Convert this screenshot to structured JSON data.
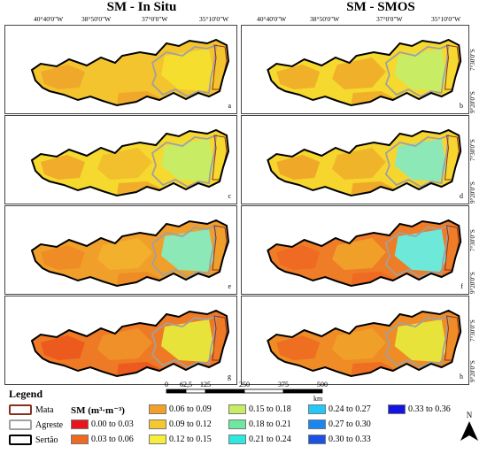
{
  "titles": {
    "left": "SM - In Situ",
    "right": "SM - SMOS"
  },
  "lon_labels": [
    "40°40'0\"W",
    "38°50'0\"W",
    "37°0'0\"W",
    "35°10'0\"W"
  ],
  "lat_labels": [
    "7°30'0\"S",
    "9°20'0\"S"
  ],
  "panels": [
    {
      "tag": "a",
      "palette": [
        "#f4c42e",
        "#f0a82a",
        "#f6de2e",
        "#f4c42e"
      ]
    },
    {
      "tag": "b",
      "palette": [
        "#f6d92e",
        "#f0b02a",
        "#c8ec63",
        "#f0b02a"
      ]
    },
    {
      "tag": "c",
      "palette": [
        "#f6d92e",
        "#f0ac2a",
        "#c8ec63",
        "#f2c02c"
      ]
    },
    {
      "tag": "d",
      "palette": [
        "#f6d62e",
        "#f0a828",
        "#8ce8b6",
        "#f0b42a"
      ]
    },
    {
      "tag": "e",
      "palette": [
        "#f0a02a",
        "#ef8c26",
        "#8ce8b6",
        "#f2b02c"
      ]
    },
    {
      "tag": "f",
      "palette": [
        "#ef7c26",
        "#ef6a22",
        "#6ee8d8",
        "#f0a028"
      ]
    },
    {
      "tag": "g",
      "palette": [
        "#ef7a26",
        "#ec5a1e",
        "#e8e33a",
        "#f09028"
      ]
    },
    {
      "tag": "h",
      "palette": [
        "#ef8c26",
        "#ee6e22",
        "#e8e33a",
        "#f0a028"
      ]
    }
  ],
  "legend": {
    "title": "Legend",
    "boundaries": [
      {
        "label": "Mata",
        "color": "#8b2e22"
      },
      {
        "label": "Agreste",
        "color": "#a0a0a0"
      },
      {
        "label": "Sertão",
        "color": "#000000"
      }
    ],
    "sm_label": "SM (m³·m⁻³)",
    "classes": [
      {
        "label": "0.00 to 0.03",
        "color": "#e8141c"
      },
      {
        "label": "0.03 to 0.06",
        "color": "#ee6a22"
      },
      {
        "label": "0.06 to 0.09",
        "color": "#f2a02a"
      },
      {
        "label": "0.09 to 0.12",
        "color": "#f6c830"
      },
      {
        "label": "0.12 to 0.15",
        "color": "#f6ee3a"
      },
      {
        "label": "0.15 to 0.18",
        "color": "#c8ec63"
      },
      {
        "label": "0.18 to 0.21",
        "color": "#6ee8a0"
      },
      {
        "label": "0.21 to 0.24",
        "color": "#2ee8e0"
      },
      {
        "label": "0.24 to 0.27",
        "color": "#22c8f6"
      },
      {
        "label": "0.27 to 0.30",
        "color": "#1a86f2"
      },
      {
        "label": "0.30 to 0.33",
        "color": "#1a52e6"
      },
      {
        "label": "0.33 to 0.36",
        "color": "#1414e0"
      }
    ]
  },
  "scale": {
    "ticks": [
      "0",
      "62,5",
      "125",
      "250",
      "375",
      "500"
    ],
    "unit": "km"
  },
  "north": "N"
}
